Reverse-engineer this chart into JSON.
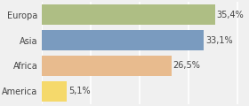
{
  "categories": [
    "Europa",
    "Asia",
    "Africa",
    "America"
  ],
  "values": [
    35.4,
    33.1,
    26.5,
    5.1
  ],
  "labels": [
    "35,4%",
    "33,1%",
    "26,5%",
    "5,1%"
  ],
  "bar_colors": [
    "#aebe84",
    "#7a9bbf",
    "#e8bb8e",
    "#f5d96b"
  ],
  "background_color": "#f0f0f0",
  "xlim": [
    0,
    42
  ],
  "bar_height": 0.82,
  "label_fontsize": 7.0,
  "category_fontsize": 7.0,
  "label_color": "#444444",
  "grid_color": "#ffffff",
  "grid_xticks": [
    0,
    10,
    20,
    30,
    40
  ]
}
